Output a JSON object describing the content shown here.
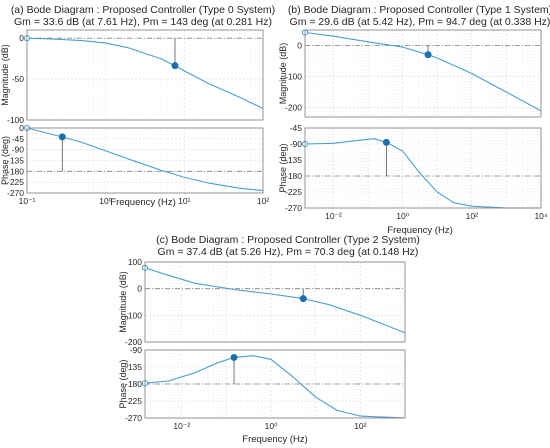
{
  "colors": {
    "curve": "#4a9fd4",
    "marker": "#1f6fae",
    "axis": "#7a7a7a",
    "grid": "#e6e6e6",
    "reference": "#808080"
  },
  "chart_data": [
    {
      "type": "line",
      "panel": "(a)",
      "title": "(a) Bode Diagram : Proposed Controller (Type 0 System)",
      "subtitle": "Gm  = 33.6 dB (at 7.61 Hz), Pm = 143 deg (at 0.281 Hz)",
      "grid": true,
      "xlabel": "Frequency (Hz)",
      "xscale": "log",
      "xlim": [
        0.1,
        100
      ],
      "x_ticks": [
        0.1,
        1,
        10,
        100
      ],
      "magnitude": {
        "ylabel": "Magnitude (dB)",
        "ylim": [
          -100,
          10
        ],
        "y_ticks": [
          0,
          -50,
          -100
        ],
        "y_tick_labels": [
          "0",
          "-50",
          "-100"
        ],
        "reference_line": 0,
        "x": [
          0.1,
          0.2,
          0.5,
          1,
          2,
          3,
          5,
          7.61,
          10,
          20,
          50,
          100
        ],
        "y": [
          0,
          -1,
          -3,
          -6,
          -12,
          -18,
          -25,
          -33.6,
          -40,
          -55,
          -72,
          -86
        ],
        "margin_marker": {
          "x": 7.61,
          "y": -33.6
        }
      },
      "phase": {
        "ylabel": "Phase (deg)",
        "ylim": [
          -270,
          0
        ],
        "y_ticks": [
          0,
          -45,
          -90,
          -135,
          -180,
          -225,
          -270
        ],
        "y_tick_labels": [
          "0",
          "-45",
          "-90",
          "-135",
          "-180",
          "-225",
          "-270"
        ],
        "reference_line": -180,
        "x": [
          0.1,
          0.2,
          0.281,
          0.5,
          1,
          2,
          5,
          10,
          20,
          50,
          100
        ],
        "y": [
          0,
          -25,
          -37,
          -60,
          -95,
          -130,
          -175,
          -205,
          -228,
          -250,
          -260
        ],
        "margin_marker": {
          "x": 0.281,
          "y": -37
        }
      }
    },
    {
      "type": "line",
      "panel": "(b)",
      "title": "(b) Bode Diagram : Proposed Controller (Type 1 System)",
      "subtitle": "Gm = 29.6 dB (at 5.42 Hz), Pm = 94.7 deg (at 0.338 Hz)",
      "grid": true,
      "xlabel": "Frequency (Hz)",
      "xscale": "log",
      "xlim": [
        0.0015,
        10000
      ],
      "x_ticks": [
        0.01,
        1,
        100,
        10000
      ],
      "magnitude": {
        "ylabel": "Magnitude (dB)",
        "ylim": [
          -230,
          50
        ],
        "y_ticks": [
          0,
          -100,
          -200
        ],
        "y_tick_labels": [
          "0",
          "-100",
          "-200"
        ],
        "reference_line": 0,
        "x": [
          0.0015,
          0.01,
          0.1,
          1,
          5.42,
          10,
          100,
          1000,
          10000
        ],
        "y": [
          42,
          30,
          12,
          -5,
          -29.6,
          -40,
          -90,
          -150,
          -210
        ],
        "margin_marker": {
          "x": 5.42,
          "y": -29.6
        }
      },
      "phase": {
        "ylabel": "Phase (deg)",
        "ylim": [
          -270,
          -45
        ],
        "y_ticks": [
          -45,
          -90,
          -135,
          -180,
          -225,
          -270
        ],
        "y_tick_labels": [
          "-45",
          "-90",
          "-135",
          "-180",
          "-225",
          "-270"
        ],
        "reference_line": -180,
        "x": [
          0.0015,
          0.01,
          0.05,
          0.15,
          0.338,
          1,
          3,
          10,
          30,
          100,
          1000,
          10000
        ],
        "y": [
          -90,
          -88,
          -80,
          -75,
          -85.3,
          -110,
          -170,
          -225,
          -255,
          -265,
          -270,
          -270
        ],
        "margin_marker": {
          "x": 0.338,
          "y": -85.3
        }
      }
    },
    {
      "type": "line",
      "panel": "(c)",
      "title": "(c) Bode Diagram : Proposed Controller (Type 2 System)",
      "subtitle": "Gm = 37.4 dB (at 5.26 Hz), Pm = 70.3 deg (at 0.148 Hz)",
      "grid": true,
      "xlabel": "Frequency (Hz)",
      "xscale": "log",
      "xlim": [
        0.0015,
        1000
      ],
      "x_ticks": [
        0.01,
        1,
        100
      ],
      "magnitude": {
        "ylabel": "Magnitude (dB)",
        "ylim": [
          -200,
          100
        ],
        "y_ticks": [
          100,
          0,
          -100,
          -200
        ],
        "y_tick_labels": [
          "100",
          "0",
          "-100",
          "-200"
        ],
        "reference_line": 0,
        "x": [
          0.0015,
          0.005,
          0.02,
          0.148,
          1,
          5.26,
          20,
          100,
          1000
        ],
        "y": [
          78,
          50,
          20,
          -3,
          -20,
          -37.4,
          -60,
          -100,
          -165
        ],
        "margin_marker": {
          "x": 5.26,
          "y": -37.4
        }
      },
      "phase": {
        "ylabel": "Phase (deg)",
        "ylim": [
          -270,
          -90
        ],
        "y_ticks": [
          -90,
          -135,
          -180,
          -225,
          -270
        ],
        "y_tick_labels": [
          "-90",
          "-135",
          "-180",
          "-225",
          "-270"
        ],
        "reference_line": -180,
        "x": [
          0.0015,
          0.005,
          0.02,
          0.06,
          0.148,
          0.4,
          1,
          3,
          10,
          30,
          100,
          1000
        ],
        "y": [
          -178,
          -172,
          -150,
          -125,
          -109.7,
          -105,
          -115,
          -160,
          -215,
          -250,
          -265,
          -270
        ],
        "margin_marker": {
          "x": 0.148,
          "y": -109.7
        }
      }
    }
  ]
}
